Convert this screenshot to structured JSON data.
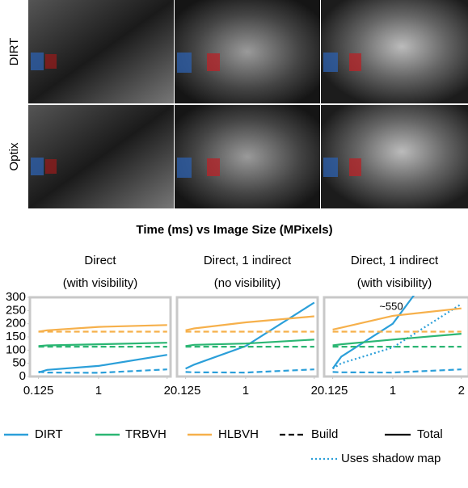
{
  "figure_title": "Time (ms) vs Image Size (MPixels)",
  "row_labels": [
    "DIRT",
    "Optix"
  ],
  "chart_data": [
    {
      "type": "line",
      "title": "Direct",
      "subtitle": "(with visibility)",
      "xlim": [
        0,
        2.05
      ],
      "xticks": [
        0.125,
        1,
        2
      ],
      "ylim": [
        0,
        300
      ],
      "yticks": [
        0,
        50,
        100,
        150,
        200,
        250,
        300
      ],
      "x": [
        0.125,
        0.25,
        1,
        2
      ],
      "series": [
        {
          "name": "DIRT",
          "color": "#2b9fd9",
          "dash": "dashed",
          "values": [
            18,
            15,
            14,
            27
          ]
        },
        {
          "name": "DIRT",
          "color": "#2b9fd9",
          "dash": "solid",
          "values": [
            15,
            25,
            40,
            82
          ]
        },
        {
          "name": "TRBVH",
          "color": "#2bb673",
          "dash": "dashed",
          "values": [
            113,
            113,
            113,
            113
          ]
        },
        {
          "name": "TRBVH",
          "color": "#2bb673",
          "dash": "solid",
          "values": [
            115,
            118,
            122,
            128
          ]
        },
        {
          "name": "HLBVH",
          "color": "#f6b04b",
          "dash": "dashed",
          "values": [
            170,
            170,
            170,
            170
          ]
        },
        {
          "name": "HLBVH",
          "color": "#f6b04b",
          "dash": "solid",
          "values": [
            170,
            175,
            188,
            195
          ]
        }
      ]
    },
    {
      "type": "line",
      "title": "Direct, 1 indirect",
      "subtitle": "(no visibility)",
      "xlim": [
        0,
        2.05
      ],
      "xticks": [
        0.125,
        1,
        2
      ],
      "ylim": [
        0,
        300
      ],
      "x": [
        0.125,
        0.25,
        1,
        2
      ],
      "series": [
        {
          "name": "DIRT",
          "color": "#2b9fd9",
          "dash": "dashed",
          "values": [
            17,
            16,
            15,
            27
          ]
        },
        {
          "name": "DIRT",
          "color": "#2b9fd9",
          "dash": "solid",
          "values": [
            30,
            45,
            115,
            280
          ]
        },
        {
          "name": "TRBVH",
          "color": "#2bb673",
          "dash": "dashed",
          "values": [
            113,
            113,
            113,
            113
          ]
        },
        {
          "name": "TRBVH",
          "color": "#2bb673",
          "dash": "solid",
          "values": [
            115,
            120,
            125,
            140
          ]
        },
        {
          "name": "HLBVH",
          "color": "#f6b04b",
          "dash": "dashed",
          "values": [
            170,
            170,
            170,
            170
          ]
        },
        {
          "name": "HLBVH",
          "color": "#f6b04b",
          "dash": "solid",
          "values": [
            175,
            182,
            205,
            228
          ]
        }
      ]
    },
    {
      "type": "line",
      "title": "Direct, 1 indirect",
      "subtitle": "(with visibility)",
      "xlim": [
        0,
        2.05
      ],
      "xticks": [
        0.125,
        1,
        2
      ],
      "ylim": [
        0,
        300
      ],
      "annotation": "~550",
      "x": [
        0.125,
        0.25,
        1,
        2
      ],
      "series": [
        {
          "name": "DIRT",
          "color": "#2b9fd9",
          "dash": "dashed",
          "values": [
            17,
            16,
            15,
            27
          ]
        },
        {
          "name": "DIRT",
          "color": "#2b9fd9",
          "dash": "solid",
          "values": [
            30,
            75,
            200,
            550
          ]
        },
        {
          "name": "DIRT",
          "color": "#2b9fd9",
          "dash": "dotted",
          "values": [
            30,
            50,
            110,
            275
          ]
        },
        {
          "name": "TRBVH",
          "color": "#2bb673",
          "dash": "dashed",
          "values": [
            113,
            113,
            113,
            113
          ]
        },
        {
          "name": "TRBVH",
          "color": "#2bb673",
          "dash": "solid",
          "values": [
            118,
            122,
            140,
            162
          ]
        },
        {
          "name": "HLBVH",
          "color": "#f6b04b",
          "dash": "dashed",
          "values": [
            170,
            170,
            170,
            170
          ]
        },
        {
          "name": "HLBVH",
          "color": "#f6b04b",
          "dash": "solid",
          "values": [
            178,
            185,
            230,
            258
          ]
        }
      ]
    }
  ],
  "legend": {
    "colors": [
      {
        "name": "DIRT",
        "color": "#2b9fd9"
      },
      {
        "name": "TRBVH",
        "color": "#2bb673"
      },
      {
        "name": "HLBVH",
        "color": "#f6b04b"
      }
    ],
    "styles": [
      {
        "name": "Build",
        "dash": "dashed"
      },
      {
        "name": "Total",
        "dash": "solid"
      },
      {
        "name": "Uses shadow map",
        "dash": "dotted",
        "color": "#2b9fd9"
      }
    ]
  }
}
